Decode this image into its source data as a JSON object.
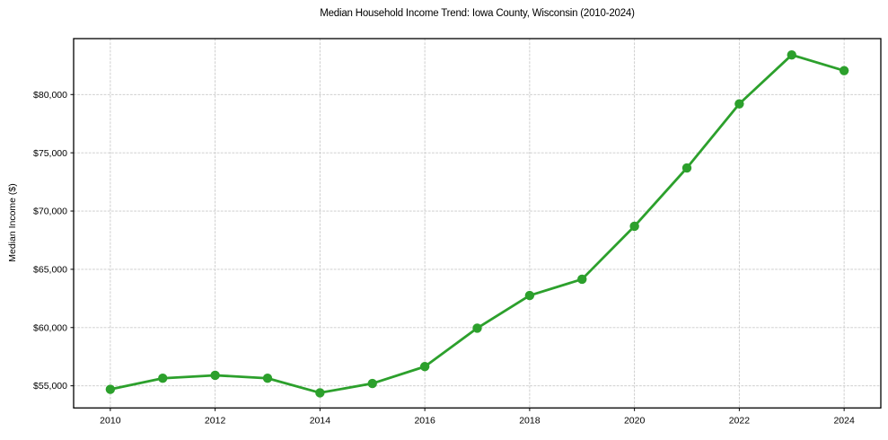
{
  "title": "Median Household Income Trend: Iowa County, Wisconsin (2010-2024)",
  "chart_data": {
    "type": "line",
    "title": "Median Household Income Trend: Iowa County, Wisconsin (2010-2024)",
    "xlabel": "",
    "ylabel": "Median Income ($)",
    "x": [
      2010,
      2011,
      2012,
      2013,
      2014,
      2015,
      2016,
      2017,
      2018,
      2019,
      2020,
      2021,
      2022,
      2023,
      2024
    ],
    "series": [
      {
        "name": "Median household income",
        "values": [
          54700,
          55650,
          55900,
          55650,
          54400,
          55200,
          56650,
          59950,
          62750,
          64150,
          68700,
          73700,
          79200,
          83400,
          82050
        ],
        "color": "#2ca02c"
      }
    ],
    "xlim": [
      2009.3,
      2024.7
    ],
    "ylim": [
      53100,
      84800
    ],
    "x_ticks": [
      2010,
      2012,
      2014,
      2016,
      2018,
      2020,
      2022,
      2024
    ],
    "x_tick_labels": [
      "2010",
      "2012",
      "2014",
      "2016",
      "2018",
      "2020",
      "2022",
      "2024"
    ],
    "y_ticks": [
      55000,
      60000,
      65000,
      70000,
      75000,
      80000
    ],
    "y_tick_labels": [
      "$55,000",
      "$60,000",
      "$65,000",
      "$70,000",
      "$75,000",
      "$80,000"
    ],
    "grid": {
      "show": true,
      "style": "dashed",
      "color": "#c9c9c9"
    },
    "legend": "none",
    "marker": "circle",
    "axis_color": "#000000",
    "background_color": "#ffffff"
  }
}
